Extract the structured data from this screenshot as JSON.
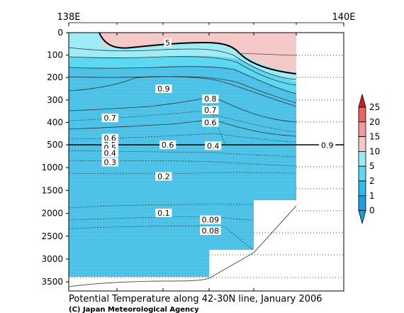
{
  "chart_data": {
    "type": "heatmap",
    "title": "Potential Temperature along 42-30N line, January 2006",
    "credit": "(C) Japan Meteorological Agency",
    "x_ticks": [
      {
        "label": "138E",
        "lon": 138
      },
      {
        "label": "140E",
        "lon": 140
      }
    ],
    "y_ticks_upper": [
      "0",
      "100",
      "200",
      "300",
      "400",
      "500"
    ],
    "y_ticks_lower": [
      "500",
      "1000",
      "1500",
      "2000",
      "2500",
      "3000",
      "3500"
    ],
    "upper_ylim": [
      0,
      500
    ],
    "lower_ylim": [
      500,
      3700
    ],
    "colorbar": {
      "ticks": [
        "0",
        "1",
        "2",
        "5",
        "10",
        "15",
        "20",
        "25"
      ],
      "colors": [
        "#1a9fe0",
        "#2fbdec",
        "#5fd6f2",
        "#9aeaf6",
        "#f7c6c6",
        "#f29a9a",
        "#e86464",
        "#d21e1e"
      ]
    },
    "fill_colors": {
      "warm": "#f6c9c9",
      "water_1": "#9eecf6",
      "water_2": "#5cd8f2",
      "cold": "#2ec0ee"
    },
    "contour_labels": [
      {
        "text": "5",
        "x": 138.72,
        "depth": 45
      },
      {
        "text": "0.9",
        "x": 138.69,
        "depth": 250
      },
      {
        "text": "0.8",
        "x": 139.03,
        "depth": 295
      },
      {
        "text": "0.7",
        "x": 139.03,
        "depth": 345
      },
      {
        "text": "0.7",
        "x": 138.3,
        "depth": 380
      },
      {
        "text": "0.6",
        "x": 139.03,
        "depth": 400
      },
      {
        "text": "0.6",
        "x": 138.3,
        "depth": 470
      },
      {
        "text": "0.5",
        "x": 138.3,
        "depth": 500
      },
      {
        "text": "0.6",
        "x": 138.72,
        "depth": 500
      },
      {
        "text": "0.4",
        "x": 139.05,
        "depth": 520
      },
      {
        "text": "0.9",
        "x": 139.88,
        "depth": 505
      },
      {
        "text": "0.5",
        "x": 138.3,
        "depth": 560
      },
      {
        "text": "0.4",
        "x": 138.3,
        "depth": 680
      },
      {
        "text": "0.3",
        "x": 138.3,
        "depth": 880
      },
      {
        "text": "0.2",
        "x": 138.69,
        "depth": 1190
      },
      {
        "text": "0.1",
        "x": 138.69,
        "depth": 1990
      },
      {
        "text": "0.09",
        "x": 139.03,
        "depth": 2140
      },
      {
        "text": "0.08",
        "x": 139.03,
        "depth": 2380
      }
    ]
  }
}
